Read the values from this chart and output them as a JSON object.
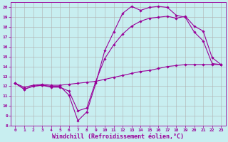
{
  "xlabel": "Windchill (Refroidissement éolien,°C)",
  "bg_color": "#c8eef0",
  "grid_color": "#b0b0b0",
  "line_color": "#990099",
  "xlim": [
    -0.5,
    23.5
  ],
  "ylim": [
    8,
    20.5
  ],
  "xticks": [
    0,
    1,
    2,
    3,
    4,
    5,
    6,
    7,
    8,
    9,
    10,
    11,
    12,
    13,
    14,
    15,
    16,
    17,
    18,
    19,
    20,
    21,
    22,
    23
  ],
  "yticks": [
    8,
    9,
    10,
    11,
    12,
    13,
    14,
    15,
    16,
    17,
    18,
    19,
    20
  ],
  "line1_x": [
    0,
    1,
    2,
    3,
    4,
    5,
    6,
    7,
    8,
    9,
    10,
    11,
    12,
    13,
    14,
    15,
    16,
    17,
    18,
    19,
    20,
    21,
    22,
    23
  ],
  "line1_y": [
    12.3,
    11.7,
    12.0,
    12.1,
    12.0,
    12.0,
    11.1,
    8.5,
    9.4,
    12.3,
    15.6,
    17.5,
    19.4,
    20.1,
    19.7,
    20.0,
    20.1,
    20.0,
    19.2,
    19.0,
    17.5,
    16.6,
    14.3,
    14.2
  ],
  "line2_x": [
    0,
    1,
    2,
    3,
    4,
    5,
    6,
    7,
    8,
    9,
    10,
    11,
    12,
    13,
    14,
    15,
    16,
    17,
    18,
    19,
    20,
    21,
    22,
    23
  ],
  "line2_y": [
    12.3,
    11.7,
    12.0,
    12.1,
    11.9,
    11.9,
    11.5,
    9.5,
    9.8,
    12.5,
    14.8,
    16.2,
    17.3,
    18.1,
    18.6,
    18.9,
    19.0,
    19.1,
    18.9,
    19.1,
    18.1,
    17.6,
    14.9,
    14.2
  ],
  "line3_x": [
    0,
    1,
    2,
    3,
    4,
    5,
    6,
    7,
    8,
    9,
    10,
    11,
    12,
    13,
    14,
    15,
    16,
    17,
    18,
    19,
    20,
    21,
    22,
    23
  ],
  "line3_y": [
    12.3,
    11.9,
    12.1,
    12.2,
    12.1,
    12.1,
    12.2,
    12.3,
    12.4,
    12.5,
    12.7,
    12.9,
    13.1,
    13.3,
    13.5,
    13.6,
    13.8,
    14.0,
    14.1,
    14.2,
    14.2,
    14.2,
    14.2,
    14.2
  ],
  "marker": "D",
  "markersize": 1.8,
  "linewidth": 0.8,
  "tick_fontsize": 4.5,
  "xlabel_fontsize": 6.0,
  "font": "monospace"
}
